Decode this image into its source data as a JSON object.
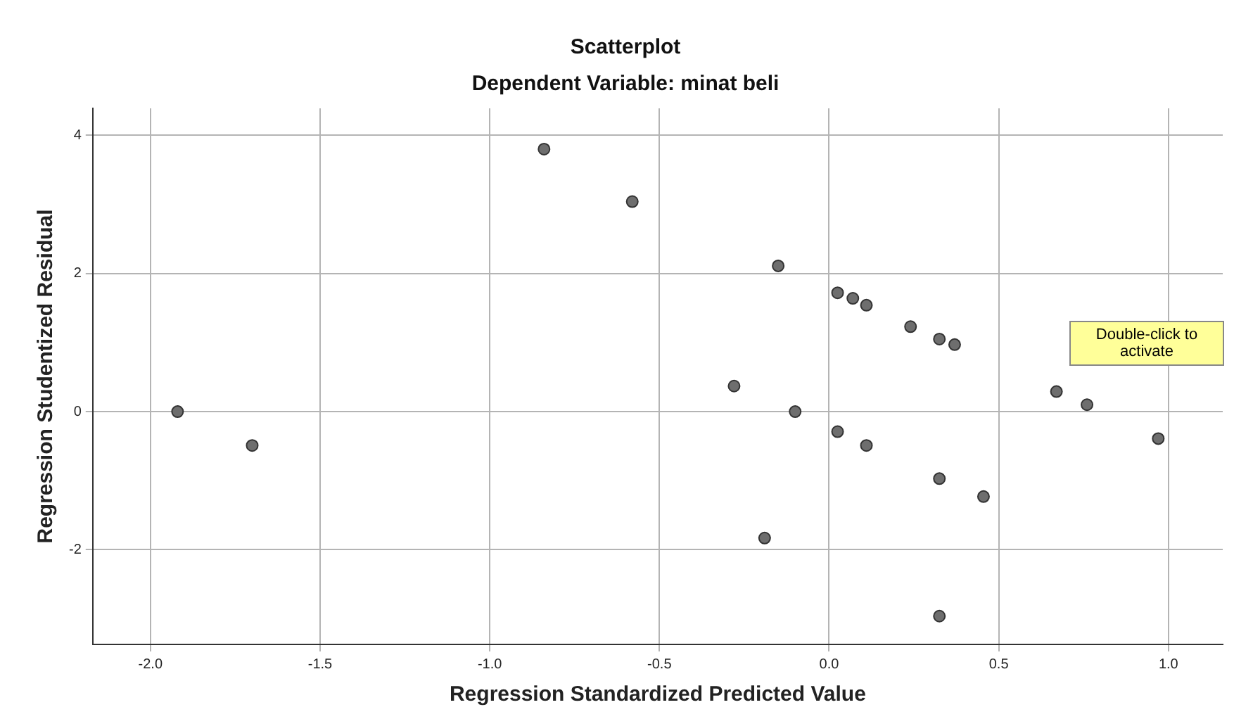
{
  "chart_data": {
    "type": "scatter",
    "title": "Scatterplot",
    "subtitle": "Dependent Variable: minat beli",
    "xlabel": "Regression Standardized Predicted Value",
    "ylabel": "Regression Studentized Residual",
    "x": [
      -1.92,
      -1.7,
      -0.84,
      -0.58,
      -0.15,
      -0.28,
      -0.1,
      -0.19,
      0.025,
      0.07,
      0.11,
      0.24,
      0.325,
      0.37,
      0.025,
      0.11,
      0.325,
      0.455,
      0.325,
      0.67,
      0.76,
      0.97
    ],
    "series": [
      {
        "color": "#6e6e6e",
        "values": [
          0,
          -0.49,
          3.8,
          3.04,
          2.11,
          0.37,
          0,
          -1.83,
          1.72,
          1.64,
          1.54,
          1.23,
          1.05,
          0.97,
          -0.29,
          -0.49,
          -0.97,
          -1.23,
          -2.96,
          0.29,
          0.1,
          -0.39
        ]
      }
    ],
    "xlim": [
      -2.17,
      1.16
    ],
    "ylim": [
      -3.37,
      4.39
    ],
    "xticks": [
      {
        "value": -2,
        "label": "-2.0"
      },
      {
        "value": -1.5,
        "label": "-1.5"
      },
      {
        "value": -1,
        "label": "-1.0"
      },
      {
        "value": -0.5,
        "label": "-0.5"
      },
      {
        "value": 0,
        "label": "0.0"
      },
      {
        "value": 0.5,
        "label": "0.5"
      },
      {
        "value": 1,
        "label": "1.0"
      }
    ],
    "yticks": [
      -2,
      0,
      2,
      4
    ],
    "grid": true,
    "marker": "circle",
    "legend": false,
    "annotations": [
      "Double-click to activate"
    ]
  }
}
